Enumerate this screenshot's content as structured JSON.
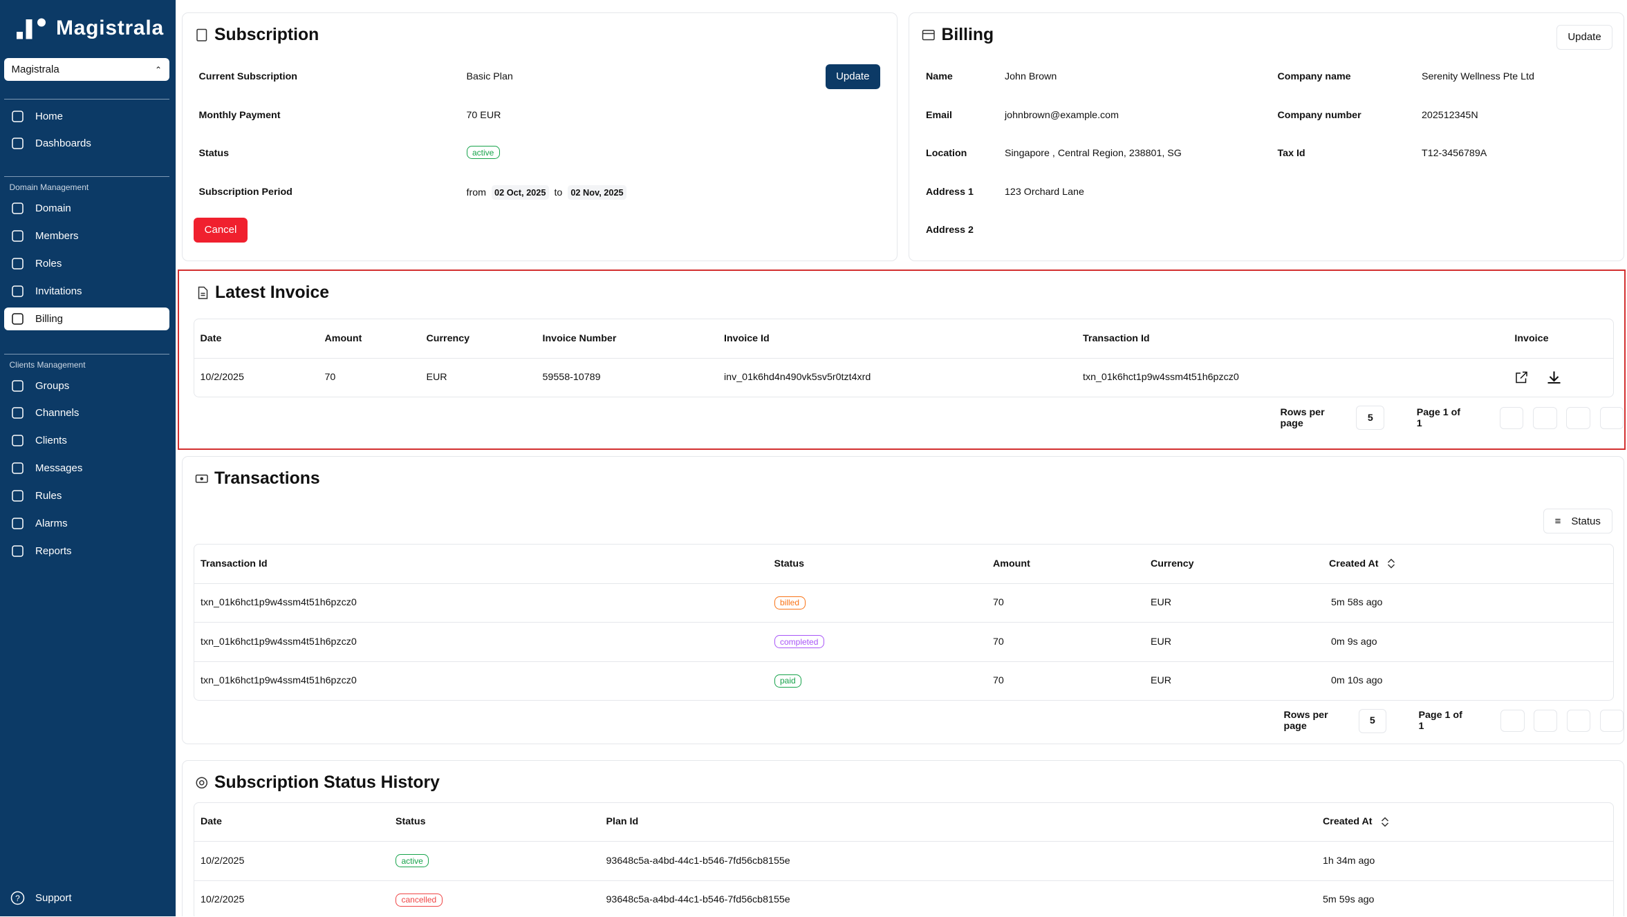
{
  "sidebar": {
    "brand": "Magistrala",
    "workspace": "Magistrala",
    "nav": [
      "Home",
      "Dashboards"
    ],
    "domain_section": {
      "title": "Domain Management",
      "items": [
        "Domain",
        "Members",
        "Roles",
        "Invitations",
        "Billing"
      ],
      "active": "Billing"
    },
    "clients_section": {
      "title": "Clients Management",
      "items": [
        "Groups",
        "Channels",
        "Clients",
        "Messages",
        "Rules",
        "Alarms",
        "Reports"
      ]
    },
    "support": "Support"
  },
  "subscription": {
    "title": "Subscription",
    "update": "Update",
    "cancel": "Cancel",
    "rows": [
      [
        "Current Subscription",
        "Basic Plan"
      ],
      [
        "Monthly Payment",
        "70 EUR"
      ]
    ],
    "status": {
      "label": "Status",
      "value": "active",
      "color": "#16a34a"
    },
    "period": {
      "label": "Subscription Period",
      "from": "from",
      "start": "02 Oct, 2025",
      "to": "to",
      "end": "02 Nov, 2025"
    }
  },
  "billing": {
    "title": "Billing",
    "update": "Update",
    "left": [
      [
        "Name",
        "John Brown"
      ],
      [
        "Email",
        "johnbrown@example.com"
      ],
      [
        "Location",
        "Singapore , Central Region, 238801, SG"
      ],
      [
        "Address 1",
        "123 Orchard Lane"
      ],
      [
        "Address 2"
      ]
    ],
    "right": [
      [
        "Company name",
        "Serenity Wellness Pte Ltd"
      ],
      [
        "Company number",
        "202512345N"
      ],
      [
        "Tax Id",
        "T12-3456789A"
      ]
    ]
  },
  "latest_invoice": {
    "title": "Latest Invoice",
    "columns": [
      "Date",
      "Amount",
      "Currency",
      "Invoice Number",
      "Invoice Id",
      "Transaction Id",
      "Invoice"
    ],
    "rows": [
      [
        "10/2/2025",
        70,
        "EUR",
        "59558-10789",
        "inv_01k6hd4n490vk5sv5r0tzt4xrd",
        "txn_01k6hct1p9w4ssm4t51h6pzcz0"
      ]
    ],
    "pagination": {
      "rows_per_page": "Rows per page",
      "page_size": "5",
      "page": "Page 1 of 1"
    }
  },
  "transactions": {
    "title": "Transactions",
    "filter": "Status",
    "columns": [
      "Transaction Id",
      "Status",
      "Amount",
      "Currency",
      "Created At"
    ],
    "rows": [
      {
        "id": "txn_01k6hct1p9w4ssm4t51h6pzcz0",
        "status": "billed",
        "status_color": "#f97316",
        "amount": 70,
        "currency": "EUR",
        "created_at": "5m 58s ago"
      },
      {
        "id": "txn_01k6hct1p9w4ssm4t51h6pzcz0",
        "status": "completed",
        "status_color": "#a855f7",
        "amount": 70,
        "currency": "EUR",
        "created_at": "0m 9s ago"
      },
      {
        "id": "txn_01k6hct1p9w4ssm4t51h6pzcz0",
        "status": "paid",
        "status_color": "#16a34a",
        "amount": 70,
        "currency": "EUR",
        "created_at": "0m 10s ago"
      }
    ],
    "pagination": {
      "rows_per_page": "Rows per page",
      "page_size": "5",
      "page": "Page 1 of 1"
    }
  },
  "history": {
    "title": "Subscription Status History",
    "columns": [
      "Date",
      "Status",
      "Plan Id",
      "Created At"
    ],
    "rows": [
      {
        "date": "10/2/2025",
        "status": "active",
        "status_color": "#16a34a",
        "plan_id": "93648c5a-a4bd-44c1-b546-7fd56cb8155e",
        "created_at": "1h 34m ago"
      },
      {
        "date": "10/2/2025",
        "status": "cancelled",
        "status_color": "#ef4444",
        "plan_id": "93648c5a-a4bd-44c1-b546-7fd56cb8155e",
        "created_at": "5m 59s ago"
      }
    ]
  }
}
